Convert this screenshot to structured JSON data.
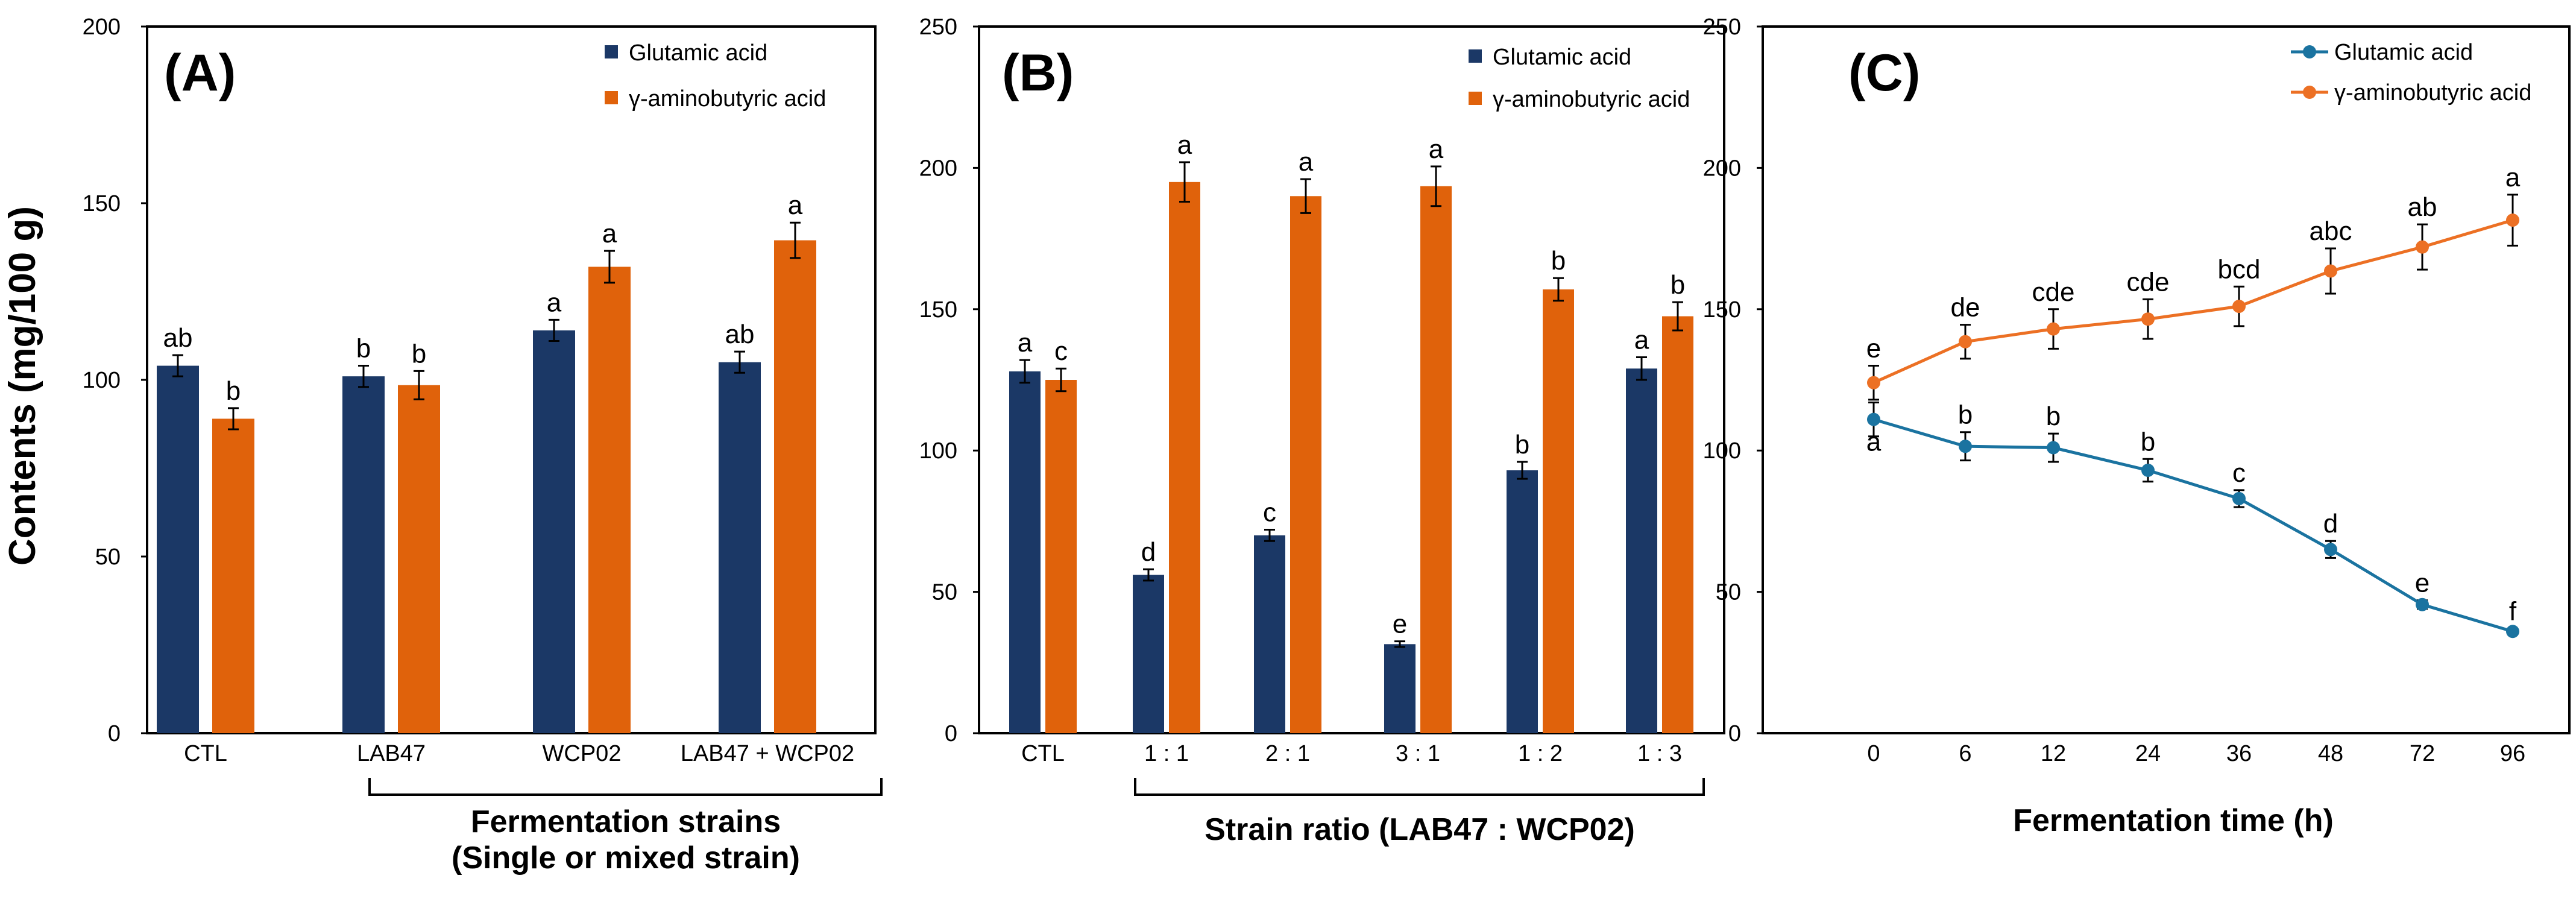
{
  "figure": {
    "ylabel": "Contents (mg/100 g)"
  },
  "chart_data": [
    {
      "type": "bar",
      "panel_label": "(A)",
      "title": "",
      "ylabel": "Contents (mg/100 g)",
      "xlabel": [
        "Fermentation strains",
        "(Single or mixed strain)"
      ],
      "ylim": [
        0,
        200
      ],
      "yticks": [
        0,
        50,
        100,
        150,
        200
      ],
      "categories": [
        "CTL",
        "LAB47",
        "WCP02",
        "LAB47 + WCP02"
      ],
      "bracket_categories": [
        "LAB47",
        "WCP02",
        "LAB47 + WCP02"
      ],
      "series": [
        {
          "name": "Glutamic acid",
          "color": "#1B3866",
          "values": [
            104,
            101,
            114,
            105
          ],
          "errors": [
            3,
            3,
            3,
            3
          ],
          "labels": [
            "ab",
            "b",
            "a",
            "ab"
          ]
        },
        {
          "name": "γ-aminobutyric acid",
          "color": "#E0620B",
          "values": [
            89,
            98.5,
            132,
            139.5
          ],
          "errors": [
            3,
            4,
            4.5,
            5
          ],
          "labels": [
            "b",
            "b",
            "a",
            "a"
          ]
        }
      ],
      "legend": "top-right"
    },
    {
      "type": "bar",
      "panel_label": "(B)",
      "title": "",
      "ylabel": "",
      "xlabel": [
        "Strain ratio (LAB47 : WCP02)"
      ],
      "ylim": [
        0,
        250
      ],
      "yticks": [
        0,
        50,
        100,
        150,
        200,
        250
      ],
      "categories": [
        "CTL",
        "1 : 1",
        "2 : 1",
        "3 : 1",
        "1 : 2",
        "1 : 3"
      ],
      "bracket_categories": [
        "1 : 1",
        "2 : 1",
        "3 : 1",
        "1 : 2",
        "1 : 3"
      ],
      "series": [
        {
          "name": "Glutamic acid",
          "color": "#1B3866",
          "values": [
            128,
            56,
            70,
            31.5,
            93,
            129
          ],
          "errors": [
            4,
            2,
            2,
            1,
            3,
            4
          ],
          "labels": [
            "a",
            "d",
            "c",
            "e",
            "b",
            "a"
          ]
        },
        {
          "name": "γ-aminobutyric acid",
          "color": "#E0620B",
          "values": [
            125,
            195,
            190,
            193.5,
            157,
            147.5
          ],
          "errors": [
            4,
            7,
            6,
            7,
            4,
            5
          ],
          "labels": [
            "c",
            "a",
            "a",
            "a",
            "b",
            "b"
          ]
        }
      ],
      "legend": "top-right"
    },
    {
      "type": "line",
      "panel_label": "(C)",
      "title": "",
      "ylabel": "",
      "xlabel": [
        "Fermentation time (h)"
      ],
      "ylim": [
        0,
        250
      ],
      "yticks": [
        0,
        50,
        100,
        150,
        200,
        250
      ],
      "categories": [
        "0",
        "6",
        "12",
        "24",
        "36",
        "48",
        "72",
        "96"
      ],
      "series": [
        {
          "name": "Glutamic acid",
          "color": "#1A73A0",
          "values": [
            111,
            101.5,
            101,
            93,
            83,
            65,
            45.5,
            36
          ],
          "errors": [
            6,
            5,
            5,
            4,
            3,
            3,
            1.5,
            1
          ],
          "labels": [
            "a",
            "b",
            "b",
            "b",
            "c",
            "d",
            "e",
            "f"
          ]
        },
        {
          "name": "γ-aminobutyric acid",
          "color": "#EC7024",
          "values": [
            124,
            138.5,
            143,
            146.5,
            151,
            163.5,
            172,
            181.5
          ],
          "errors": [
            6,
            6,
            7,
            7,
            7,
            8,
            8,
            9
          ],
          "labels": [
            "e",
            "de",
            "cde",
            "cde",
            "bcd",
            "abc",
            "ab",
            "a"
          ]
        }
      ],
      "legend": "top-right"
    }
  ]
}
